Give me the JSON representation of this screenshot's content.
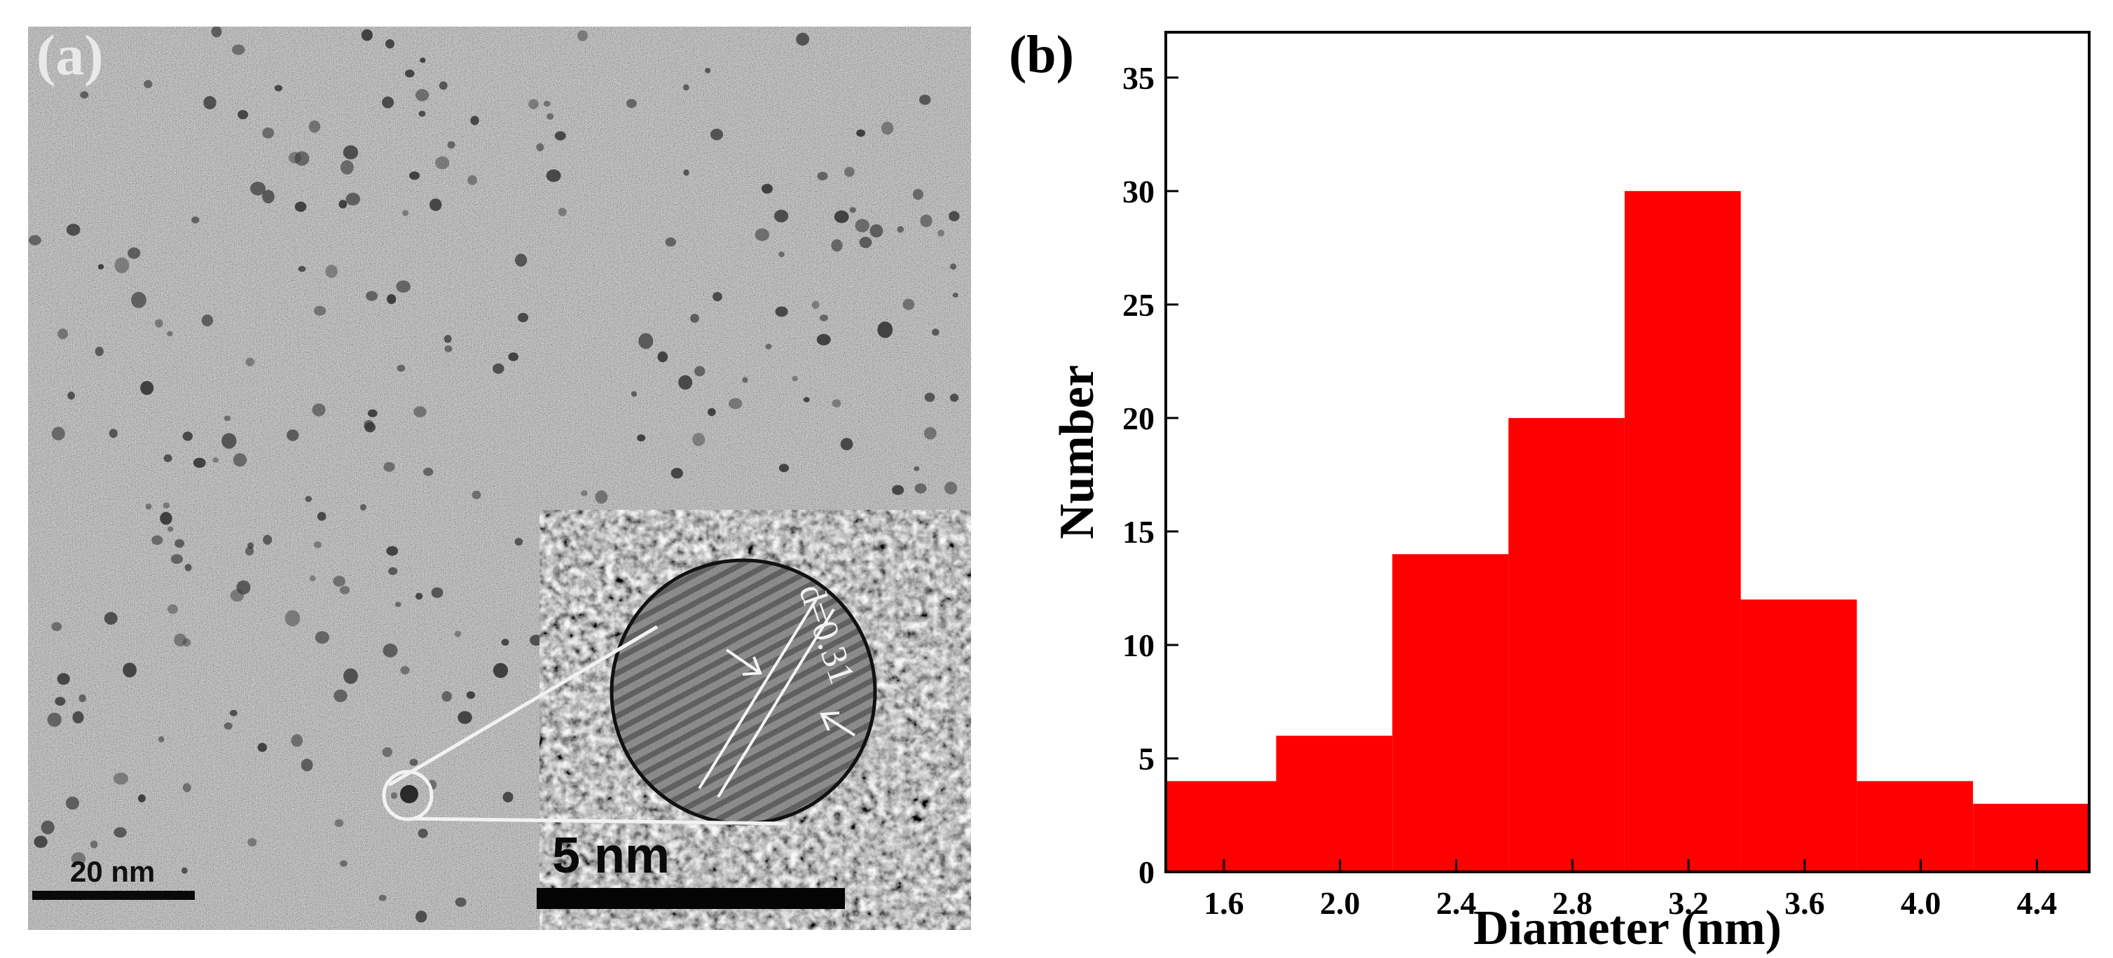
{
  "panel_a": {
    "label": "(a)",
    "scale_bar_label": "20 nm",
    "inset_scale_bar_label": "5 nm",
    "lattice_label": "d=0.31"
  },
  "panel_b": {
    "label": "(b)"
  },
  "colors": {
    "bar_fill": "#ff0000",
    "axis": "#000000",
    "micrograph_bg": "#8e8e8e"
  },
  "chart_data": {
    "type": "bar",
    "title": "",
    "xlabel": "Diameter (nm)",
    "ylabel": "Number",
    "bin_edges": [
      1.4,
      1.78,
      2.18,
      2.58,
      2.98,
      3.38,
      3.78,
      4.18,
      4.58
    ],
    "values": [
      4,
      6,
      14,
      20,
      30,
      12,
      4,
      3
    ],
    "xlim": [
      1.4,
      4.58
    ],
    "ylim": [
      0,
      37
    ],
    "xticks": [
      1.6,
      2.0,
      2.4,
      2.8,
      3.2,
      3.6,
      4.0,
      4.4
    ],
    "xtick_labels": [
      "1.6",
      "2.0",
      "2.4",
      "2.8",
      "3.2",
      "3.6",
      "4.0",
      "4.4"
    ],
    "yticks": [
      0,
      5,
      10,
      15,
      20,
      25,
      30,
      35
    ],
    "ytick_labels": [
      "0",
      "5",
      "10",
      "15",
      "20",
      "25",
      "30",
      "35"
    ],
    "grid": false,
    "legend": "none"
  }
}
